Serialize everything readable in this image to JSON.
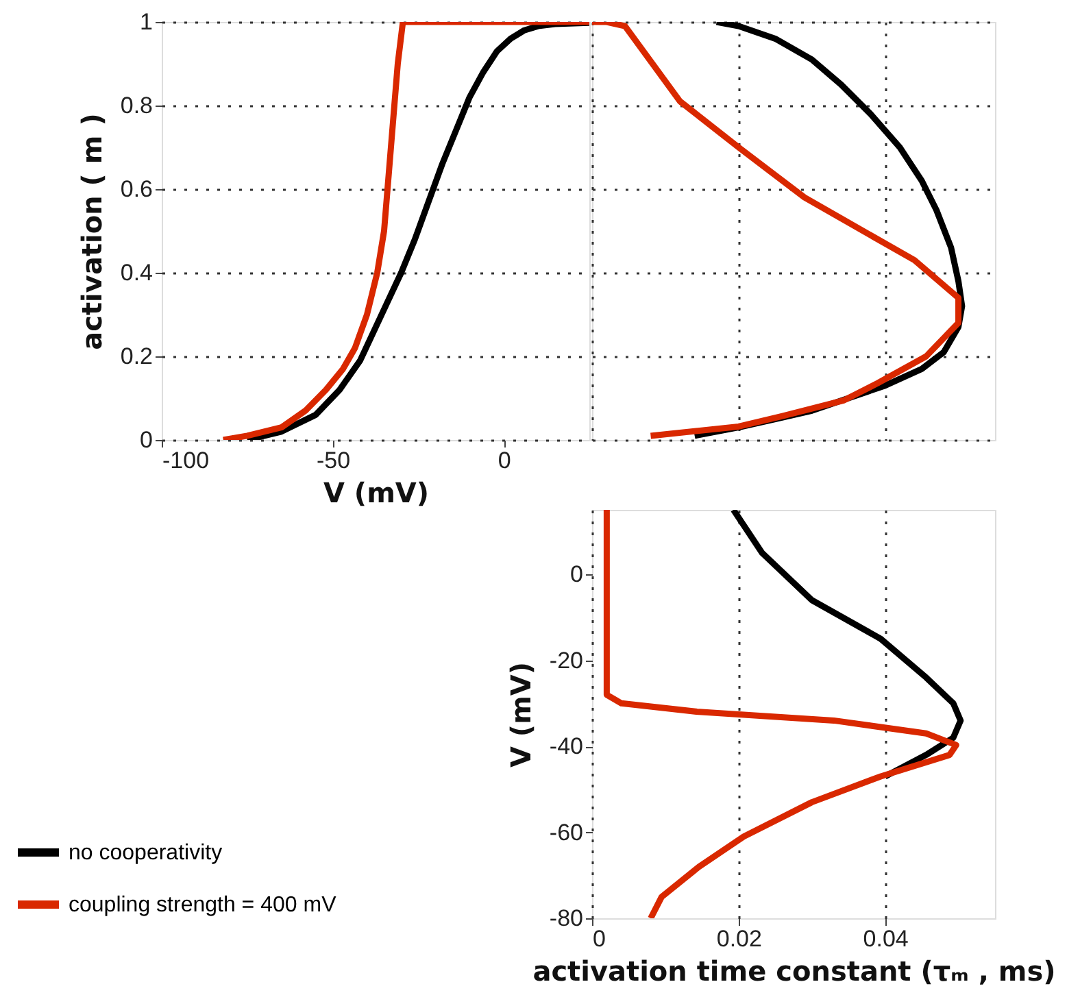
{
  "chart_data": [
    {
      "type": "line",
      "xlabel": "V (mV)",
      "ylabel": "activation ( m )",
      "xlim": [
        -100,
        25
      ],
      "ylim": [
        0,
        1
      ],
      "xticks": [
        -100,
        -50,
        0
      ],
      "yticks": [
        0,
        0.2,
        0.4,
        0.6,
        0.8,
        1
      ],
      "grid": "y",
      "legend": "bottom left",
      "series": [
        {
          "name": "no cooperativity",
          "color": "#000000",
          "x": [
            -75,
            -65,
            -55,
            -48,
            -42,
            -38,
            -34,
            -30,
            -26,
            -22,
            -18,
            -14,
            -10,
            -6,
            -2,
            2,
            6,
            10,
            15,
            25
          ],
          "values": [
            0.0,
            0.02,
            0.06,
            0.12,
            0.19,
            0.26,
            0.33,
            0.4,
            0.48,
            0.57,
            0.66,
            0.74,
            0.82,
            0.88,
            0.93,
            0.96,
            0.98,
            0.99,
            0.995,
            0.998
          ]
        },
        {
          "name": "coupling strength = 400 mV",
          "color": "#d92800",
          "x": [
            -82,
            -75,
            -65,
            -58,
            -52,
            -47,
            -43.5,
            -40,
            -37,
            -35,
            -34,
            -33,
            -32,
            -31,
            -29.5,
            25
          ],
          "values": [
            0.0,
            0.01,
            0.03,
            0.07,
            0.12,
            0.17,
            0.22,
            0.3,
            0.4,
            0.5,
            0.6,
            0.7,
            0.8,
            0.9,
            1.0,
            1.0
          ]
        }
      ]
    },
    {
      "type": "line",
      "xlim": [
        0,
        0.055
      ],
      "ylim": [
        0,
        1
      ],
      "xticks": [
        0,
        0.02,
        0.04
      ],
      "yticks": [
        0,
        0.2,
        0.4,
        0.6,
        0.8,
        1
      ],
      "grid": true,
      "tick_labels": false,
      "series": [
        {
          "color": "#000000",
          "x": [
            0.017,
            0.02,
            0.025,
            0.03,
            0.034,
            0.038,
            0.042,
            0.045,
            0.047,
            0.049,
            0.05,
            0.0505,
            0.05,
            0.048,
            0.045,
            0.04,
            0.035,
            0.03,
            0.025,
            0.02,
            0.014
          ],
          "values": [
            1.0,
            0.99,
            0.96,
            0.91,
            0.85,
            0.78,
            0.7,
            0.62,
            0.55,
            0.46,
            0.38,
            0.32,
            0.27,
            0.21,
            0.17,
            0.13,
            0.1,
            0.07,
            0.05,
            0.03,
            0.01
          ]
        },
        {
          "color": "#d92800",
          "x": [
            0,
            0.002,
            0.0045,
            0.012,
            0.02,
            0.029,
            0.044,
            0.05,
            0.05,
            0.0456,
            0.039,
            0.0344,
            0.026,
            0.02,
            0.008
          ],
          "values": [
            1.0,
            1.0,
            0.99,
            0.81,
            0.7,
            0.58,
            0.43,
            0.34,
            0.28,
            0.2,
            0.136,
            0.095,
            0.057,
            0.032,
            0.01
          ]
        }
      ]
    },
    {
      "type": "line",
      "xlabel": "activation time constant (τₘ , ms)",
      "ylabel": "V (mV)",
      "xlim": [
        0,
        0.055
      ],
      "ylim": [
        -80,
        15
      ],
      "xticks": [
        0,
        0.02,
        0.04
      ],
      "yticks": [
        -80,
        -60,
        -40,
        -20,
        0
      ],
      "grid": "x",
      "series": [
        {
          "color": "#000000",
          "x": [
            0.0193,
            0.0232,
            0.03,
            0.0394,
            0.0456,
            0.0493,
            0.0503,
            0.0493,
            0.0456,
            0.04
          ],
          "values": [
            15,
            5,
            -6,
            -15,
            -24,
            -30,
            -34,
            -38,
            -42,
            -47
          ]
        },
        {
          "color": "#d92800",
          "x": [
            0.002,
            0.002,
            0.004,
            0.0146,
            0.033,
            0.0456,
            0.0497,
            0.0488,
            0.0394,
            0.03,
            0.0207,
            0.0146,
            0.0095,
            0.008
          ],
          "values": [
            15,
            -28,
            -30,
            -32,
            -34,
            -37,
            -39.7,
            -42,
            -47,
            -53,
            -61,
            -68,
            -75,
            -80
          ]
        }
      ]
    }
  ]
}
